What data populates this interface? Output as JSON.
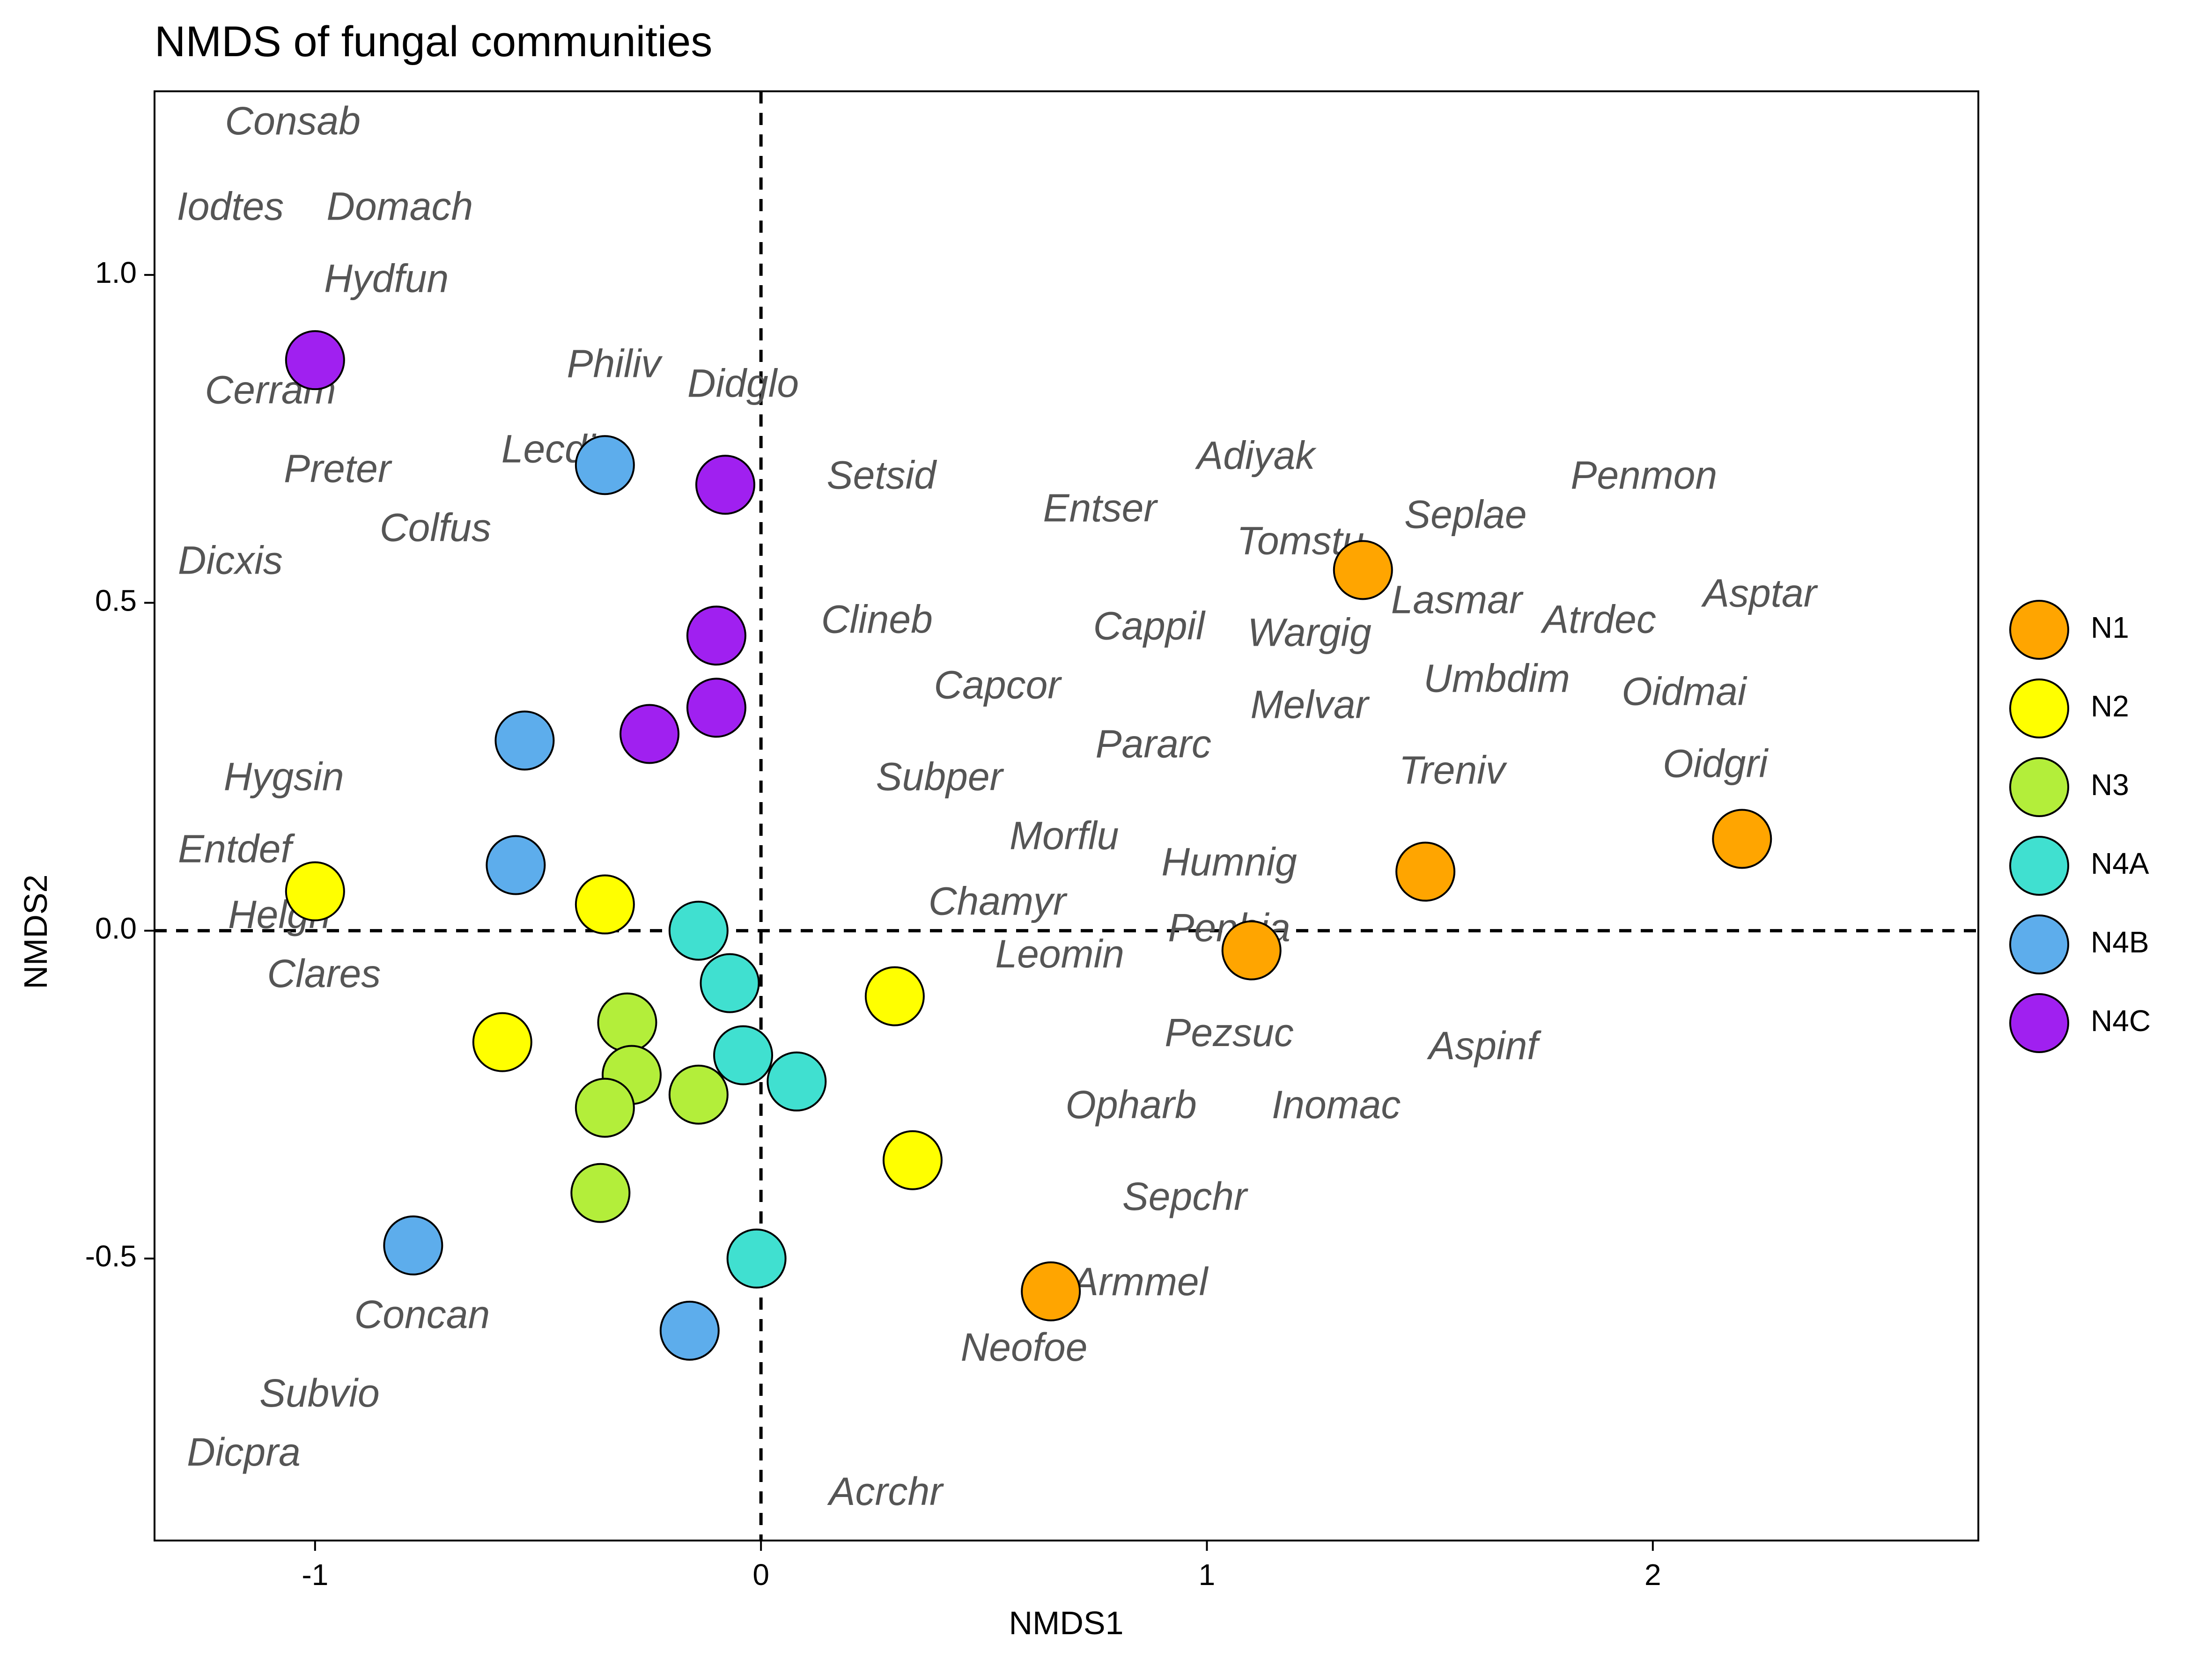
{
  "chart_data": {
    "type": "scatter",
    "title": "NMDS of fungal communities",
    "xlabel": "NMDS1",
    "ylabel": "NMDS2",
    "xlim": [
      -1.36,
      2.73
    ],
    "ylim": [
      -0.93,
      1.28
    ],
    "xticks": [
      -1,
      0,
      1,
      2
    ],
    "xtick_labels": [
      "-1",
      "0",
      "1",
      "2"
    ],
    "yticks": [
      -0.5,
      0.0,
      0.5,
      1.0
    ],
    "ytick_labels": [
      "-0.5",
      "0.0",
      "0.5",
      "1.0"
    ],
    "reference_lines": {
      "x": 0,
      "y": 0,
      "style": "dashed"
    },
    "grid": false,
    "legend_position": "right",
    "groups": [
      {
        "name": "N1",
        "color": "#FFA500"
      },
      {
        "name": "N2",
        "color": "#FFFF00"
      },
      {
        "name": "N3",
        "color": "#B3EE3A"
      },
      {
        "name": "N4A",
        "color": "#40E0D0"
      },
      {
        "name": "N4B",
        "color": "#5DADEC"
      },
      {
        "name": "N4C",
        "color": "#A020F0"
      }
    ],
    "sites": [
      {
        "group": "N1",
        "x": 1.35,
        "y": 0.55
      },
      {
        "group": "N1",
        "x": 1.49,
        "y": 0.09
      },
      {
        "group": "N1",
        "x": 2.2,
        "y": 0.14
      },
      {
        "group": "N1",
        "x": 1.1,
        "y": -0.03
      },
      {
        "group": "N1",
        "x": 0.65,
        "y": -0.55
      },
      {
        "group": "N2",
        "x": -1.0,
        "y": 0.06
      },
      {
        "group": "N2",
        "x": -0.35,
        "y": 0.04
      },
      {
        "group": "N2",
        "x": -0.58,
        "y": -0.17
      },
      {
        "group": "N2",
        "x": 0.3,
        "y": -0.1
      },
      {
        "group": "N2",
        "x": 0.34,
        "y": -0.35
      },
      {
        "group": "N3",
        "x": -0.3,
        "y": -0.14
      },
      {
        "group": "N3",
        "x": -0.29,
        "y": -0.22
      },
      {
        "group": "N3",
        "x": -0.35,
        "y": -0.27
      },
      {
        "group": "N3",
        "x": -0.14,
        "y": -0.25
      },
      {
        "group": "N3",
        "x": -0.36,
        "y": -0.4
      },
      {
        "group": "N4A",
        "x": -0.14,
        "y": 0.0
      },
      {
        "group": "N4A",
        "x": -0.07,
        "y": -0.08
      },
      {
        "group": "N4A",
        "x": -0.04,
        "y": -0.19
      },
      {
        "group": "N4A",
        "x": 0.08,
        "y": -0.23
      },
      {
        "group": "N4A",
        "x": -0.01,
        "y": -0.5
      },
      {
        "group": "N4B",
        "x": -0.35,
        "y": 0.71
      },
      {
        "group": "N4B",
        "x": -0.53,
        "y": 0.29
      },
      {
        "group": "N4B",
        "x": -0.55,
        "y": 0.1
      },
      {
        "group": "N4B",
        "x": -0.78,
        "y": -0.48
      },
      {
        "group": "N4B",
        "x": -0.16,
        "y": -0.61
      },
      {
        "group": "N4C",
        "x": -1.0,
        "y": 0.87
      },
      {
        "group": "N4C",
        "x": -0.08,
        "y": 0.68
      },
      {
        "group": "N4C",
        "x": -0.1,
        "y": 0.45
      },
      {
        "group": "N4C",
        "x": -0.1,
        "y": 0.34
      },
      {
        "group": "N4C",
        "x": -0.25,
        "y": 0.3
      }
    ],
    "species": [
      {
        "name": "Consab",
        "x": -1.05,
        "y": 1.23
      },
      {
        "name": "Iodtes",
        "x": -1.19,
        "y": 1.1
      },
      {
        "name": "Domach",
        "x": -0.81,
        "y": 1.1
      },
      {
        "name": "Hydfun",
        "x": -0.84,
        "y": 0.99
      },
      {
        "name": "Cerram",
        "x": -1.1,
        "y": 0.82
      },
      {
        "name": "Philiv",
        "x": -0.33,
        "y": 0.86
      },
      {
        "name": "Didglo",
        "x": -0.04,
        "y": 0.83
      },
      {
        "name": "Lecdim",
        "x": -0.44,
        "y": 0.73
      },
      {
        "name": "Preter",
        "x": -0.95,
        "y": 0.7
      },
      {
        "name": "Setsid",
        "x": 0.27,
        "y": 0.69
      },
      {
        "name": "Colfus",
        "x": -0.73,
        "y": 0.61
      },
      {
        "name": "Dicxis",
        "x": -1.19,
        "y": 0.56
      },
      {
        "name": "Adiyak",
        "x": 1.11,
        "y": 0.72
      },
      {
        "name": "Entser",
        "x": 0.76,
        "y": 0.64
      },
      {
        "name": "Penmon",
        "x": 1.98,
        "y": 0.69
      },
      {
        "name": "Seplae",
        "x": 1.58,
        "y": 0.63
      },
      {
        "name": "Tomstu",
        "x": 1.21,
        "y": 0.59
      },
      {
        "name": "Lasmar",
        "x": 1.56,
        "y": 0.5
      },
      {
        "name": "Asptar",
        "x": 2.24,
        "y": 0.51
      },
      {
        "name": "Atrdec",
        "x": 1.88,
        "y": 0.47
      },
      {
        "name": "Clineb",
        "x": 0.26,
        "y": 0.47
      },
      {
        "name": "Cappil",
        "x": 0.87,
        "y": 0.46
      },
      {
        "name": "Wargig",
        "x": 1.23,
        "y": 0.45
      },
      {
        "name": "Umbdim",
        "x": 1.65,
        "y": 0.38
      },
      {
        "name": "Oidmai",
        "x": 2.07,
        "y": 0.36
      },
      {
        "name": "Capcor",
        "x": 0.53,
        "y": 0.37
      },
      {
        "name": "Melvar",
        "x": 1.23,
        "y": 0.34
      },
      {
        "name": "Pararc",
        "x": 0.88,
        "y": 0.28
      },
      {
        "name": "Oidgri",
        "x": 2.14,
        "y": 0.25
      },
      {
        "name": "Treniv",
        "x": 1.55,
        "y": 0.24
      },
      {
        "name": "Hygsin",
        "x": -1.07,
        "y": 0.23
      },
      {
        "name": "Subper",
        "x": 0.4,
        "y": 0.23
      },
      {
        "name": "Morflu",
        "x": 0.68,
        "y": 0.14
      },
      {
        "name": "Entdef",
        "x": -1.18,
        "y": 0.12
      },
      {
        "name": "Humnig",
        "x": 1.05,
        "y": 0.1
      },
      {
        "name": "Chamyr",
        "x": 0.53,
        "y": 0.04
      },
      {
        "name": "Helgri",
        "x": -1.08,
        "y": 0.02
      },
      {
        "name": "Penbia",
        "x": 1.05,
        "y": 0.0
      },
      {
        "name": "Leomin",
        "x": 0.67,
        "y": -0.04
      },
      {
        "name": "Clares",
        "x": -0.98,
        "y": -0.07
      },
      {
        "name": "Pezsuc",
        "x": 1.05,
        "y": -0.16
      },
      {
        "name": "Aspinf",
        "x": 1.62,
        "y": -0.18
      },
      {
        "name": "Opharb",
        "x": 0.83,
        "y": -0.27
      },
      {
        "name": "Inomac",
        "x": 1.29,
        "y": -0.27
      },
      {
        "name": "Sepchr",
        "x": 0.95,
        "y": -0.41
      },
      {
        "name": "Armmel",
        "x": 0.85,
        "y": -0.54
      },
      {
        "name": "Concan",
        "x": -0.76,
        "y": -0.59
      },
      {
        "name": "Neofoe",
        "x": 0.59,
        "y": -0.64
      },
      {
        "name": "Subvio",
        "x": -0.99,
        "y": -0.71
      },
      {
        "name": "Dicpra",
        "x": -1.16,
        "y": -0.8
      },
      {
        "name": "Acrchr",
        "x": 0.28,
        "y": -0.86
      }
    ]
  }
}
